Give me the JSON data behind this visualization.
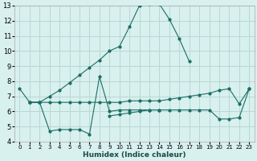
{
  "xlabel": "Humidex (Indice chaleur)",
  "bg_color": "#d8f0ee",
  "grid_color": "#b8d8d4",
  "line_color": "#1a6e64",
  "xlim": [
    -0.5,
    23.5
  ],
  "ylim": [
    4,
    13
  ],
  "xticks": [
    0,
    1,
    2,
    3,
    4,
    5,
    6,
    7,
    8,
    9,
    10,
    11,
    12,
    13,
    14,
    15,
    16,
    17,
    18,
    19,
    20,
    21,
    22,
    23
  ],
  "yticks": [
    4,
    5,
    6,
    7,
    8,
    9,
    10,
    11,
    12,
    13
  ],
  "line1_x": [
    0,
    1,
    2,
    3,
    4,
    5,
    6,
    7,
    8,
    9,
    10,
    11,
    12,
    13,
    14,
    15,
    16,
    17
  ],
  "line1_y": [
    7.5,
    6.6,
    6.6,
    7.0,
    7.4,
    7.9,
    8.4,
    8.9,
    9.4,
    10.0,
    10.3,
    11.6,
    13.0,
    13.1,
    13.1,
    12.1,
    10.8,
    9.3
  ],
  "line2_x": [
    1,
    2,
    3,
    4,
    5,
    6,
    7,
    8,
    9,
    10,
    11,
    12,
    13,
    14
  ],
  "line2_y": [
    6.6,
    6.6,
    4.7,
    4.8,
    4.8,
    4.8,
    4.5,
    8.3,
    6.0,
    6.1,
    6.1,
    6.1,
    6.1,
    6.1
  ],
  "line3_x": [
    1,
    2,
    3,
    4,
    5,
    6,
    7,
    8,
    9,
    10,
    11,
    12,
    13,
    14,
    15,
    16,
    17,
    18,
    19,
    20,
    21,
    22,
    23
  ],
  "line3_y": [
    6.6,
    6.6,
    6.6,
    6.6,
    6.6,
    6.6,
    6.6,
    6.6,
    6.6,
    6.6,
    6.7,
    6.7,
    6.7,
    6.7,
    6.8,
    6.9,
    7.0,
    7.1,
    7.2,
    7.4,
    7.5,
    6.5,
    7.5
  ],
  "line4_x": [
    9,
    10,
    11,
    12,
    13,
    14,
    15,
    16,
    17,
    18,
    19,
    20,
    21,
    22,
    23
  ],
  "line4_y": [
    5.7,
    5.8,
    5.9,
    6.0,
    6.1,
    6.1,
    6.1,
    6.1,
    6.1,
    6.1,
    6.1,
    5.5,
    5.5,
    5.6,
    7.5
  ]
}
